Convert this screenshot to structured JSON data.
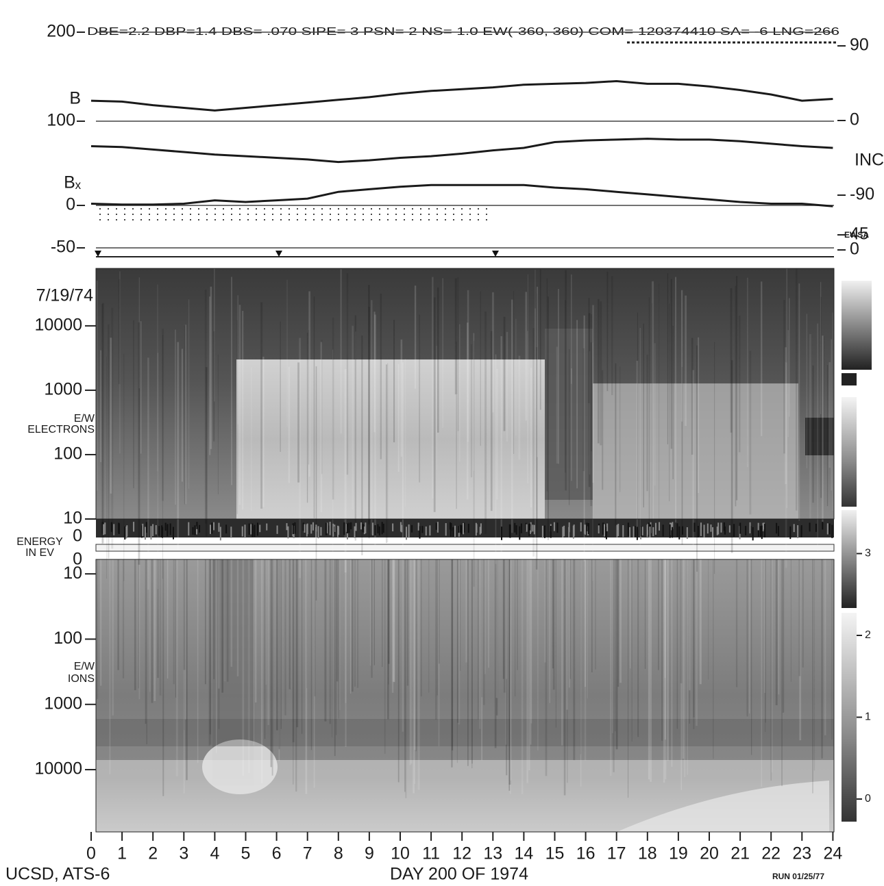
{
  "chart_data": [
    {
      "type": "line",
      "title": "DBE=2.2  DBP=1.4  DBS= .070 SIPE= 3 PSN= 2 NS= 1.0 EW(-360, 360) COM= 120374410 SA=  -6 LNG=266",
      "x": [
        0,
        1,
        2,
        3,
        4,
        5,
        6,
        7,
        8,
        9,
        10,
        11,
        12,
        13,
        14,
        15,
        16,
        17,
        18,
        19,
        20,
        21,
        22,
        23,
        24
      ],
      "xlim": [
        0,
        24
      ],
      "ylim": [
        100,
        200
      ],
      "yticks": [
        200,
        100
      ],
      "y2lim": [
        -90,
        90
      ],
      "y2ticks": [
        90,
        0,
        -90
      ],
      "series": [
        {
          "name": "B",
          "color": "#1a1a1a",
          "values": [
            123,
            122,
            118,
            115,
            112,
            115,
            118,
            121,
            124,
            127,
            131,
            134,
            136,
            138,
            141,
            142,
            143,
            145,
            142,
            142,
            139,
            135,
            130,
            123,
            125
          ]
        },
        {
          "name": "INC",
          "color": "#1a1a1a",
          "axis": "y2",
          "values": [
            -31,
            -32,
            -35,
            -38,
            -41,
            -43,
            -45,
            -47,
            -50,
            -48,
            -45,
            -43,
            -40,
            -36,
            -33,
            -26,
            -24,
            -23,
            -22,
            -23,
            -23,
            -25,
            -28,
            -31,
            -33
          ]
        }
      ]
    },
    {
      "type": "line",
      "x": [
        0,
        1,
        2,
        3,
        4,
        5,
        6,
        7,
        8,
        9,
        10,
        11,
        12,
        13,
        14,
        15,
        16,
        17,
        18,
        19,
        20,
        21,
        22,
        23,
        24
      ],
      "xlim": [
        0,
        24
      ],
      "ylim": [
        -50,
        50
      ],
      "yticks": [
        0,
        -50
      ],
      "y2_label": "EWSA",
      "y2lim": [
        0,
        45
      ],
      "y2ticks": [
        45,
        0
      ],
      "series": [
        {
          "name": "Bₓ",
          "color": "#1a1a1a",
          "values": [
            2,
            1,
            1,
            2,
            6,
            4,
            6,
            8,
            16,
            19,
            22,
            24,
            24,
            24,
            24,
            21,
            19,
            16,
            13,
            10,
            7,
            4,
            2,
            2,
            -1
          ]
        }
      ]
    },
    {
      "type": "heatmap",
      "date_label": "7/19/74",
      "y_label": [
        "E/W",
        "ELECTRONS"
      ],
      "energy_label": [
        "ENERGY",
        "IN EV"
      ],
      "strip_label": "0",
      "log_scale": true,
      "ylim": [
        10,
        78000
      ],
      "yticks": [
        10000,
        1000,
        100,
        10
      ]
    },
    {
      "type": "heatmap",
      "y_label": [
        "E/W",
        "IONS"
      ],
      "strip_label": "0",
      "log_scale": true,
      "y_inverted": true,
      "ylim": [
        6,
        90000
      ],
      "yticks": [
        10,
        100,
        1000,
        10000
      ],
      "xlim": [
        0,
        24
      ],
      "xticks": [
        0,
        1,
        2,
        3,
        4,
        5,
        6,
        7,
        8,
        9,
        10,
        11,
        12,
        13,
        14,
        15,
        16,
        17,
        18,
        19,
        20,
        21,
        22,
        23,
        24
      ],
      "x_label": "DAY 200 OF 1974",
      "colorbar_lim": [
        -0.3,
        3.3
      ],
      "colorbar_ticks": [
        3,
        2,
        1,
        0
      ],
      "source": "UCSD, ATS-6",
      "run_label": "RUN 01/25/77"
    }
  ]
}
